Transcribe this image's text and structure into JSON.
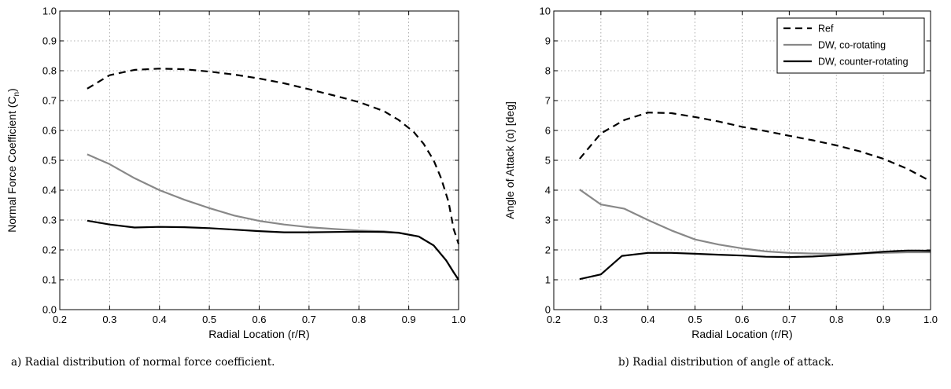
{
  "chart_data": [
    {
      "type": "line",
      "caption": "a) Radial distribution of normal force coefficient.",
      "xlabel": "Radial Location (r/R)",
      "ylabel": "Normal Force Coefficient (C",
      "ylabel_sub": "n",
      "ylabel_close": ")",
      "xlim": [
        0.2,
        1.0
      ],
      "ylim": [
        0.0,
        1.0
      ],
      "xticks": [
        "0.2",
        "0.3",
        "0.4",
        "0.5",
        "0.6",
        "0.7",
        "0.8",
        "0.9",
        "1.0"
      ],
      "yticks": [
        "0.0",
        "0.1",
        "0.2",
        "0.3",
        "0.4",
        "0.5",
        "0.6",
        "0.7",
        "0.8",
        "0.9",
        "1.0"
      ],
      "grid": true,
      "series": [
        {
          "name": "Ref",
          "style": "dashed",
          "color": "#000000",
          "x": [
            0.255,
            0.3,
            0.35,
            0.4,
            0.45,
            0.5,
            0.55,
            0.6,
            0.65,
            0.7,
            0.75,
            0.8,
            0.85,
            0.88,
            0.91,
            0.93,
            0.95,
            0.965,
            0.98,
            0.99,
            1.0
          ],
          "y": [
            0.74,
            0.785,
            0.803,
            0.807,
            0.805,
            0.797,
            0.787,
            0.774,
            0.758,
            0.738,
            0.717,
            0.695,
            0.665,
            0.635,
            0.595,
            0.555,
            0.5,
            0.44,
            0.36,
            0.27,
            0.22
          ]
        },
        {
          "name": "DW, co-rotating",
          "style": "solid",
          "color": "#888888",
          "x": [
            0.255,
            0.3,
            0.35,
            0.4,
            0.45,
            0.5,
            0.55,
            0.6,
            0.65,
            0.7,
            0.75,
            0.8,
            0.85,
            0.88,
            0.92,
            0.95,
            0.975,
            0.99,
            1.0
          ],
          "y": [
            0.52,
            0.487,
            0.44,
            0.4,
            0.368,
            0.34,
            0.315,
            0.297,
            0.285,
            0.276,
            0.27,
            0.265,
            0.262,
            0.258,
            0.245,
            0.215,
            0.165,
            0.125,
            0.1
          ]
        },
        {
          "name": "DW, counter-rotating",
          "style": "solid",
          "color": "#000000",
          "x": [
            0.255,
            0.3,
            0.35,
            0.4,
            0.45,
            0.5,
            0.55,
            0.6,
            0.65,
            0.7,
            0.75,
            0.8,
            0.85,
            0.88,
            0.92,
            0.95,
            0.975,
            0.99,
            1.0
          ],
          "y": [
            0.298,
            0.285,
            0.275,
            0.277,
            0.276,
            0.273,
            0.268,
            0.263,
            0.259,
            0.259,
            0.26,
            0.261,
            0.26,
            0.257,
            0.245,
            0.215,
            0.165,
            0.125,
            0.1
          ]
        }
      ]
    },
    {
      "type": "line",
      "caption": "b) Radial distribution of angle of attack.",
      "xlabel": "Radial Location (r/R)",
      "ylabel": "Angle of Attack (α) [deg]",
      "xlim": [
        0.2,
        1.0
      ],
      "ylim": [
        0,
        10
      ],
      "xticks": [
        "0.2",
        "0.3",
        "0.4",
        "0.5",
        "0.6",
        "0.7",
        "0.8",
        "0.9",
        "1.0"
      ],
      "yticks": [
        "0",
        "1",
        "2",
        "3",
        "4",
        "5",
        "6",
        "7",
        "8",
        "9",
        "10"
      ],
      "grid": true,
      "legend_position": "top-right",
      "series": [
        {
          "name": "Ref",
          "style": "dashed",
          "color": "#000000",
          "x": [
            0.255,
            0.3,
            0.35,
            0.4,
            0.45,
            0.5,
            0.55,
            0.6,
            0.65,
            0.7,
            0.75,
            0.8,
            0.85,
            0.9,
            0.95,
            1.0
          ],
          "y": [
            5.05,
            5.9,
            6.35,
            6.6,
            6.58,
            6.45,
            6.3,
            6.12,
            5.98,
            5.82,
            5.67,
            5.5,
            5.3,
            5.05,
            4.72,
            4.3
          ]
        },
        {
          "name": "DW, co-rotating",
          "style": "solid",
          "color": "#888888",
          "x": [
            0.255,
            0.3,
            0.35,
            0.4,
            0.45,
            0.5,
            0.55,
            0.6,
            0.65,
            0.7,
            0.75,
            0.8,
            0.85,
            0.9,
            0.95,
            1.0
          ],
          "y": [
            4.02,
            3.52,
            3.38,
            3.0,
            2.65,
            2.35,
            2.18,
            2.05,
            1.95,
            1.9,
            1.88,
            1.87,
            1.88,
            1.9,
            1.92,
            1.92
          ]
        },
        {
          "name": "DW, counter-rotating",
          "style": "solid",
          "color": "#000000",
          "x": [
            0.255,
            0.3,
            0.345,
            0.4,
            0.45,
            0.5,
            0.55,
            0.6,
            0.65,
            0.7,
            0.75,
            0.8,
            0.85,
            0.9,
            0.95,
            0.975,
            1.0
          ],
          "y": [
            1.02,
            1.18,
            1.8,
            1.9,
            1.9,
            1.87,
            1.84,
            1.81,
            1.77,
            1.76,
            1.78,
            1.82,
            1.88,
            1.94,
            1.98,
            1.98,
            1.97
          ]
        }
      ]
    }
  ]
}
